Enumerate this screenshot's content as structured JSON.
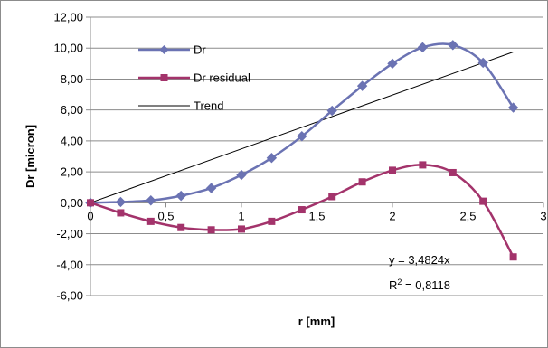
{
  "chart_data": {
    "type": "line",
    "title": "",
    "xlabel": "r [mm]",
    "ylabel": "Dr [micron]",
    "xlim": [
      0,
      3
    ],
    "ylim": [
      -6,
      12
    ],
    "x_ticks": [
      0,
      0.5,
      1,
      1.5,
      2,
      2.5,
      3
    ],
    "x_tick_labels": [
      "0",
      "0,5",
      "1",
      "1,5",
      "2",
      "2,5",
      "3"
    ],
    "y_ticks": [
      12,
      10,
      8,
      6,
      4,
      2,
      0,
      -2,
      -4,
      -6
    ],
    "y_tick_labels": [
      "12,00",
      "10,00",
      "8,00",
      "6,00",
      "4,00",
      "2,00",
      "0,00",
      "-2,00",
      "-4,00",
      "-6,00"
    ],
    "grid": "horizontal",
    "legend_position": "top-left",
    "series": [
      {
        "name": "Dr",
        "color": "#6b73b3",
        "marker": "diamond",
        "x": [
          0,
          0.2,
          0.4,
          0.6,
          0.8,
          1.0,
          1.2,
          1.4,
          1.6,
          1.8,
          2.0,
          2.2,
          2.4,
          2.6,
          2.8
        ],
        "y": [
          0.0,
          0.05,
          0.15,
          0.45,
          0.95,
          1.8,
          2.9,
          4.3,
          5.95,
          7.55,
          9.0,
          10.05,
          10.2,
          9.05,
          6.15
        ]
      },
      {
        "name": "Dr residual",
        "color": "#a3336b",
        "marker": "square",
        "x": [
          0,
          0.2,
          0.4,
          0.6,
          0.8,
          1.0,
          1.2,
          1.4,
          1.6,
          1.8,
          2.0,
          2.2,
          2.4,
          2.6,
          2.8
        ],
        "y": [
          0.0,
          -0.65,
          -1.2,
          -1.6,
          -1.75,
          -1.7,
          -1.2,
          -0.45,
          0.4,
          1.35,
          2.1,
          2.45,
          1.95,
          0.1,
          -3.5
        ]
      },
      {
        "name": "Trend",
        "color": "#000000",
        "marker": "none",
        "x": [
          0,
          2.8
        ],
        "y": [
          0.0,
          9.75
        ]
      }
    ],
    "annotations": {
      "equation": "y = 3,4824x",
      "r2_prefix": "R",
      "r2_sup": "2",
      "r2_value": " = 0,8118"
    }
  }
}
